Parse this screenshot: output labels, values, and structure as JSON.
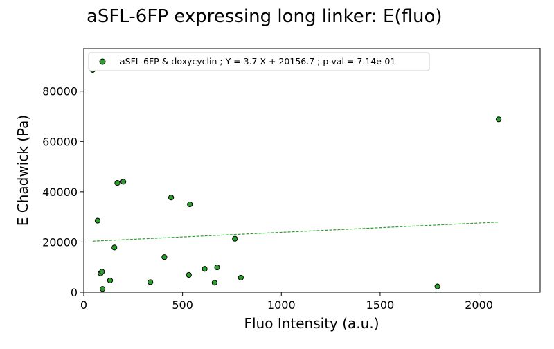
{
  "chart_data": {
    "type": "scatter",
    "title": "aSFL-6FP expressing long linker: E(fluo)",
    "xlabel": "Fluo Intensity (a.u.)",
    "ylabel": "E Chadwick (Pa)",
    "xlim": [
      0,
      2310
    ],
    "ylim": [
      0,
      97000
    ],
    "xticks": [
      0,
      500,
      1000,
      1500,
      2000
    ],
    "yticks": [
      0,
      20000,
      40000,
      60000,
      80000
    ],
    "grid": false,
    "legend_placement": "top-left",
    "series": [
      {
        "name": "aSFL-6FP & doxycyclin ; Y = 3.7 X + 20156.7 ; p-val = 7.14e-01",
        "color": "#2ca02c",
        "points": [
          {
            "x": 45,
            "y": 88500
          },
          {
            "x": 70,
            "y": 28500
          },
          {
            "x": 85,
            "y": 7500
          },
          {
            "x": 92,
            "y": 8200
          },
          {
            "x": 95,
            "y": 1300
          },
          {
            "x": 133,
            "y": 4700
          },
          {
            "x": 155,
            "y": 17800
          },
          {
            "x": 170,
            "y": 43500
          },
          {
            "x": 200,
            "y": 44000
          },
          {
            "x": 337,
            "y": 4000
          },
          {
            "x": 408,
            "y": 14000
          },
          {
            "x": 442,
            "y": 37700
          },
          {
            "x": 532,
            "y": 6900
          },
          {
            "x": 537,
            "y": 35000
          },
          {
            "x": 612,
            "y": 9300
          },
          {
            "x": 662,
            "y": 3800
          },
          {
            "x": 675,
            "y": 9900
          },
          {
            "x": 765,
            "y": 21300
          },
          {
            "x": 795,
            "y": 5800
          },
          {
            "x": 1790,
            "y": 2300
          },
          {
            "x": 2100,
            "y": 68800
          }
        ],
        "fit": {
          "slope": 3.7,
          "intercept": 20156.7,
          "x_range": [
            45,
            2100
          ],
          "style": "dashed"
        }
      }
    ]
  }
}
